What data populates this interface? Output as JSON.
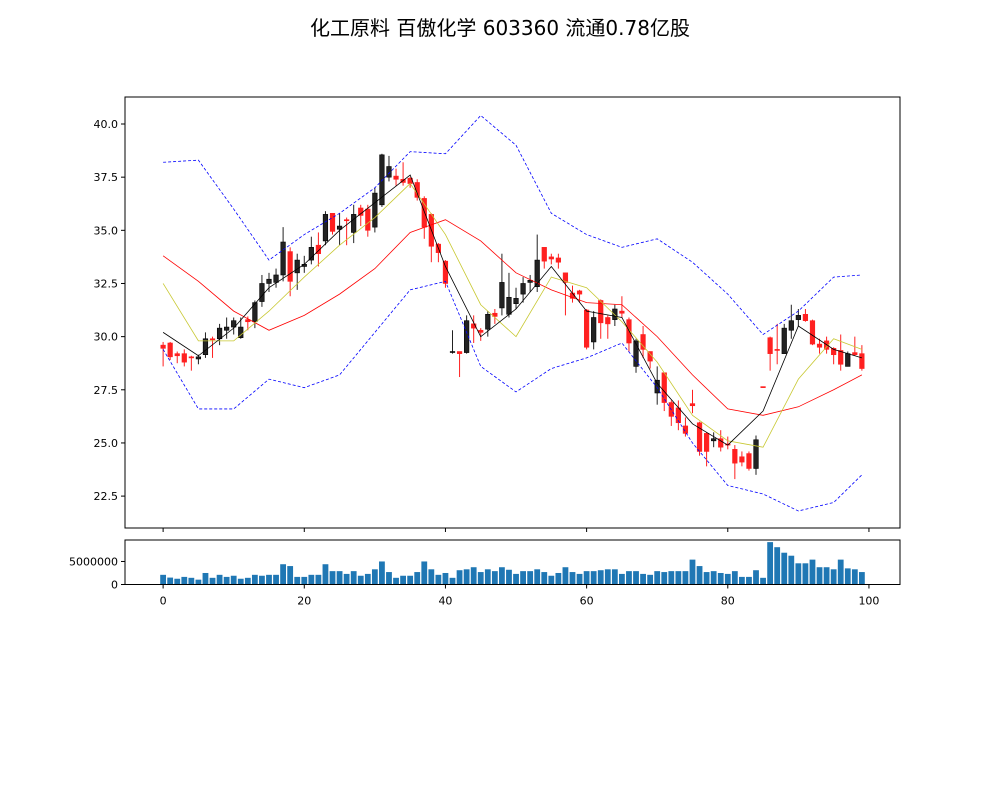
{
  "title": "化工原料 百傲化学 603360 流通0.78亿股",
  "chart_data": [
    {
      "type": "candlestick",
      "title": "化工原料 百傲化学 603360 流通0.78亿股",
      "xlim": [
        -5.4,
        104.4
      ],
      "ylim": [
        21.0,
        41.27
      ],
      "yticks": [
        "22.5",
        "25.0",
        "27.5",
        "30.0",
        "32.5",
        "35.0",
        "37.5",
        "40.0"
      ],
      "colors": {
        "up": "#222222",
        "down": "#ff2020",
        "ma5": "#000000",
        "ma10": "#c8c832",
        "ma20": "#ff0000",
        "boll": "#0000ff"
      },
      "ohlc_fields": [
        "open",
        "high",
        "low",
        "close"
      ],
      "candles": [
        [
          29.6,
          29.75,
          28.6,
          29.45
        ],
        [
          29.7,
          29.75,
          28.9,
          29.05
        ],
        [
          29.2,
          29.3,
          28.75,
          29.1
        ],
        [
          29.2,
          29.4,
          28.6,
          28.8
        ],
        [
          29.05,
          29.1,
          28.4,
          29.0
        ],
        [
          28.95,
          29.15,
          28.7,
          29.05
        ],
        [
          29.15,
          30.2,
          29.0,
          29.9
        ],
        [
          29.9,
          30.0,
          29.0,
          29.85
        ],
        [
          29.9,
          30.6,
          29.6,
          30.4
        ],
        [
          30.3,
          30.9,
          29.9,
          30.45
        ],
        [
          30.45,
          30.9,
          30.1,
          30.75
        ],
        [
          29.95,
          30.9,
          29.9,
          30.45
        ],
        [
          30.8,
          30.95,
          30.3,
          30.7
        ],
        [
          30.7,
          31.7,
          30.4,
          31.6
        ],
        [
          31.65,
          32.9,
          31.4,
          32.5
        ],
        [
          32.5,
          33.0,
          32.1,
          32.7
        ],
        [
          32.55,
          33.2,
          32.3,
          32.9
        ],
        [
          32.9,
          35.15,
          32.6,
          34.45
        ],
        [
          34.0,
          34.2,
          31.9,
          32.6
        ],
        [
          33.0,
          33.9,
          32.2,
          33.6
        ],
        [
          33.3,
          33.8,
          33.0,
          33.4
        ],
        [
          33.6,
          34.7,
          33.4,
          34.2
        ],
        [
          34.3,
          34.9,
          33.3,
          33.9
        ],
        [
          34.5,
          35.9,
          34.3,
          35.75
        ],
        [
          35.8,
          35.8,
          34.8,
          34.95
        ],
        [
          35.05,
          35.8,
          34.3,
          35.2
        ],
        [
          35.5,
          35.6,
          34.3,
          35.45
        ],
        [
          34.9,
          36.2,
          34.4,
          35.75
        ],
        [
          36.05,
          36.2,
          35.2,
          35.7
        ],
        [
          36.0,
          36.2,
          34.7,
          35.0
        ],
        [
          35.15,
          37.0,
          34.9,
          36.75
        ],
        [
          36.2,
          38.6,
          36.1,
          38.55
        ],
        [
          37.5,
          38.5,
          37.3,
          38.0
        ],
        [
          37.55,
          37.9,
          37.1,
          37.4
        ],
        [
          37.4,
          38.2,
          37.1,
          37.25
        ],
        [
          37.45,
          37.5,
          37.0,
          37.2
        ],
        [
          37.25,
          37.4,
          36.4,
          36.55
        ],
        [
          36.5,
          36.6,
          34.6,
          35.15
        ],
        [
          35.75,
          35.8,
          33.5,
          34.25
        ],
        [
          34.35,
          34.4,
          33.5,
          33.95
        ],
        [
          33.55,
          33.6,
          32.3,
          32.5
        ],
        [
          29.3,
          30.3,
          29.2,
          29.3
        ],
        [
          29.3,
          29.3,
          28.1,
          29.2
        ],
        [
          29.25,
          31.0,
          29.2,
          30.75
        ],
        [
          30.6,
          31.0,
          29.7,
          30.4
        ],
        [
          30.3,
          30.4,
          29.8,
          30.2
        ],
        [
          30.35,
          31.2,
          30.0,
          31.05
        ],
        [
          31.1,
          31.3,
          30.6,
          30.95
        ],
        [
          31.35,
          33.9,
          31.0,
          32.55
        ],
        [
          31.05,
          33.0,
          30.9,
          31.85
        ],
        [
          31.55,
          32.3,
          31.3,
          31.8
        ],
        [
          32.0,
          32.8,
          31.6,
          32.5
        ],
        [
          32.55,
          32.9,
          32.1,
          32.65
        ],
        [
          32.35,
          34.8,
          32.1,
          33.6
        ],
        [
          34.2,
          34.2,
          33.2,
          33.55
        ],
        [
          33.75,
          33.9,
          33.4,
          33.65
        ],
        [
          33.7,
          33.9,
          33.2,
          33.5
        ],
        [
          33.0,
          33.0,
          31.0,
          32.55
        ],
        [
          32.05,
          32.4,
          31.6,
          31.8
        ],
        [
          32.15,
          32.2,
          31.6,
          32.0
        ],
        [
          31.25,
          31.3,
          29.4,
          29.5
        ],
        [
          29.75,
          31.2,
          29.4,
          30.9
        ],
        [
          31.7,
          31.75,
          29.9,
          30.65
        ],
        [
          30.9,
          31.0,
          29.9,
          30.6
        ],
        [
          30.8,
          31.5,
          30.5,
          31.3
        ],
        [
          31.2,
          31.9,
          30.9,
          31.1
        ],
        [
          30.8,
          30.9,
          29.3,
          29.7
        ],
        [
          28.6,
          29.9,
          28.3,
          29.8
        ],
        [
          30.1,
          30.5,
          29.0,
          29.4
        ],
        [
          29.3,
          29.3,
          28.5,
          28.85
        ],
        [
          27.35,
          28.6,
          26.8,
          27.95
        ],
        [
          28.3,
          28.3,
          26.5,
          26.9
        ],
        [
          26.9,
          27.0,
          25.8,
          26.25
        ],
        [
          26.65,
          27.0,
          25.6,
          25.95
        ],
        [
          25.8,
          26.2,
          25.3,
          25.45
        ],
        [
          26.85,
          27.5,
          26.4,
          26.75
        ],
        [
          25.95,
          26.0,
          24.4,
          24.6
        ],
        [
          25.45,
          25.5,
          23.9,
          24.6
        ],
        [
          25.1,
          25.5,
          24.8,
          25.2
        ],
        [
          25.2,
          25.6,
          24.6,
          24.8
        ],
        [
          24.95,
          25.3,
          24.7,
          24.9
        ],
        [
          24.7,
          24.9,
          23.3,
          24.05
        ],
        [
          24.35,
          24.6,
          23.9,
          24.1
        ],
        [
          24.5,
          24.6,
          23.7,
          23.8
        ],
        [
          23.8,
          25.35,
          23.5,
          25.15
        ],
        [
          27.65,
          27.65,
          27.6,
          27.6
        ],
        [
          29.95,
          30.0,
          28.4,
          29.2
        ],
        [
          29.4,
          30.6,
          28.7,
          29.35
        ],
        [
          29.2,
          30.6,
          29.2,
          30.4
        ],
        [
          30.3,
          31.5,
          29.9,
          30.75
        ],
        [
          30.8,
          31.3,
          30.5,
          31.0
        ],
        [
          31.05,
          31.3,
          30.7,
          30.75
        ],
        [
          30.75,
          30.8,
          29.6,
          29.65
        ],
        [
          29.65,
          29.9,
          29.2,
          29.5
        ],
        [
          29.8,
          30.0,
          29.2,
          29.4
        ],
        [
          29.45,
          29.5,
          28.7,
          29.15
        ],
        [
          29.35,
          30.1,
          28.4,
          28.7
        ],
        [
          28.6,
          29.3,
          28.6,
          29.2
        ],
        [
          29.25,
          30.0,
          29.1,
          29.15
        ],
        [
          29.2,
          29.6,
          28.4,
          28.5
        ]
      ],
      "lines": {
        "x": [
          0,
          5,
          10,
          15,
          20,
          25,
          30,
          35,
          40,
          45,
          50,
          55,
          60,
          65,
          70,
          75,
          80,
          85,
          90,
          95,
          99
        ],
        "ma5": [
          30.2,
          29.1,
          30.4,
          32.3,
          33.4,
          35.0,
          36.3,
          37.6,
          33.3,
          30.0,
          31.3,
          33.3,
          31.2,
          30.9,
          27.8,
          25.9,
          24.9,
          26.5,
          30.5,
          29.4,
          29.0
        ],
        "ma10": [
          32.5,
          29.8,
          29.8,
          31.2,
          32.8,
          34.3,
          35.6,
          37.2,
          34.8,
          31.5,
          30.0,
          32.8,
          32.3,
          30.7,
          28.8,
          26.3,
          25.1,
          24.8,
          28.0,
          29.9,
          29.4
        ],
        "ma20": [
          33.8,
          32.6,
          31.2,
          30.3,
          31.0,
          32.0,
          33.2,
          34.9,
          35.5,
          34.5,
          33.0,
          32.2,
          31.6,
          31.5,
          30.0,
          28.2,
          26.6,
          26.3,
          26.7,
          27.5,
          28.2
        ],
        "boll_upper": [
          38.2,
          38.3,
          36.0,
          33.6,
          34.8,
          35.8,
          37.0,
          38.7,
          38.6,
          40.4,
          39.0,
          35.8,
          34.8,
          34.2,
          34.6,
          33.5,
          32.0,
          30.1,
          31.2,
          32.8,
          32.9
        ],
        "boll_lower": [
          29.4,
          26.6,
          26.6,
          28.0,
          27.6,
          28.2,
          30.2,
          32.2,
          32.6,
          28.6,
          27.4,
          28.5,
          29.0,
          29.7,
          27.6,
          25.0,
          23.0,
          22.6,
          21.8,
          22.2,
          23.5
        ]
      }
    },
    {
      "type": "bar",
      "ylim": [
        0,
        9660000
      ],
      "yticks": [
        "0",
        "5000000"
      ],
      "xticks": [
        "0",
        "20",
        "40",
        "60",
        "80",
        "100"
      ],
      "color": "#1f77b4",
      "values": [
        2100000,
        1500000,
        1250000,
        1650000,
        1450000,
        1050000,
        2500000,
        1450000,
        2100000,
        1650000,
        1900000,
        1250000,
        1450000,
        2100000,
        1900000,
        2100000,
        2100000,
        4400000,
        4000000,
        1650000,
        1650000,
        2100000,
        2100000,
        4400000,
        2900000,
        2900000,
        2300000,
        2900000,
        1900000,
        2300000,
        3300000,
        5000000,
        2700000,
        1450000,
        1900000,
        1900000,
        2700000,
        5000000,
        3300000,
        2100000,
        2500000,
        1450000,
        3100000,
        3300000,
        3750000,
        2700000,
        3300000,
        2900000,
        3750000,
        3200000,
        2300000,
        2900000,
        2900000,
        3300000,
        2700000,
        1900000,
        2500000,
        3750000,
        2700000,
        2300000,
        2900000,
        2900000,
        3100000,
        3300000,
        3300000,
        2300000,
        2900000,
        2900000,
        2300000,
        2100000,
        2900000,
        2700000,
        2900000,
        2900000,
        2900000,
        5400000,
        4000000,
        2700000,
        2900000,
        2500000,
        2300000,
        2900000,
        1650000,
        1650000,
        3100000,
        1450000,
        9200000,
        8100000,
        6900000,
        6250000,
        4600000,
        4600000,
        5400000,
        3750000,
        3750000,
        3300000,
        5400000,
        3500000,
        3300000,
        2700000
      ]
    }
  ]
}
